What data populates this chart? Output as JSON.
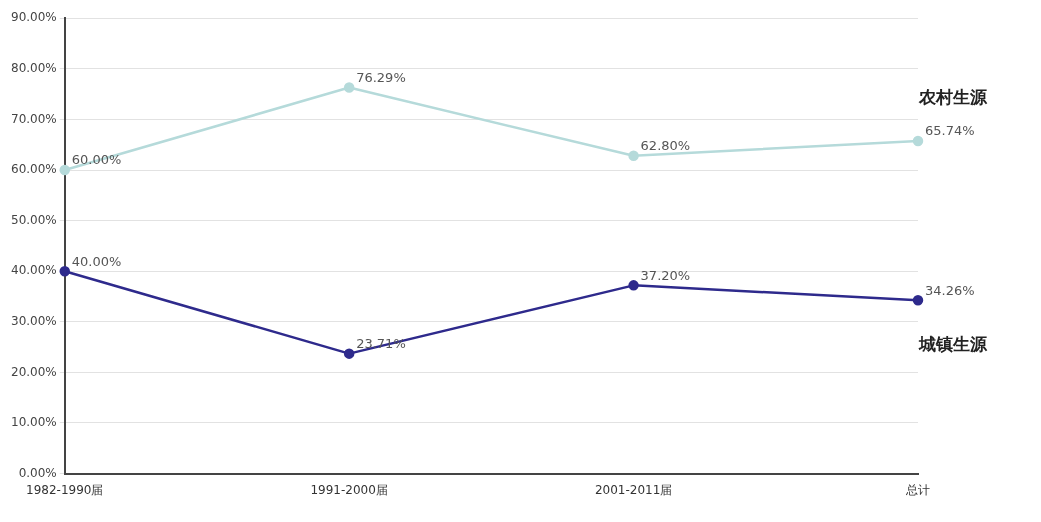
{
  "chart_data": {
    "type": "line",
    "categories": [
      "1982-1990届",
      "1991-2000届",
      "2001-2011届",
      "总计"
    ],
    "series": [
      {
        "name": "农村生源",
        "color": "#b5dada",
        "values": [
          60.0,
          76.29,
          62.8,
          65.74
        ],
        "value_labels": [
          "60.00%",
          "76.29%",
          "62.80%",
          "65.74%"
        ]
      },
      {
        "name": "城镇生源",
        "color": "#2e2a8c",
        "values": [
          40.0,
          23.71,
          37.2,
          34.26
        ],
        "value_labels": [
          "40.00%",
          "23.71%",
          "37.20%",
          "34.26%"
        ]
      }
    ],
    "ylim": [
      0,
      90
    ],
    "yticks": [
      {
        "value": 0,
        "label": "0.00%"
      },
      {
        "value": 10,
        "label": "10.00%"
      },
      {
        "value": 20,
        "label": "20.00%"
      },
      {
        "value": 30,
        "label": "30.00%"
      },
      {
        "value": 40,
        "label": "40.00%"
      },
      {
        "value": 50,
        "label": "50.00%"
      },
      {
        "value": 60,
        "label": "60.00%"
      },
      {
        "value": 70,
        "label": "70.00%"
      },
      {
        "value": 80,
        "label": "80.00%"
      },
      {
        "value": 90,
        "label": "90.00%"
      }
    ],
    "grid": "y",
    "marker": "circle",
    "line_style": "solid",
    "legend": false
  }
}
